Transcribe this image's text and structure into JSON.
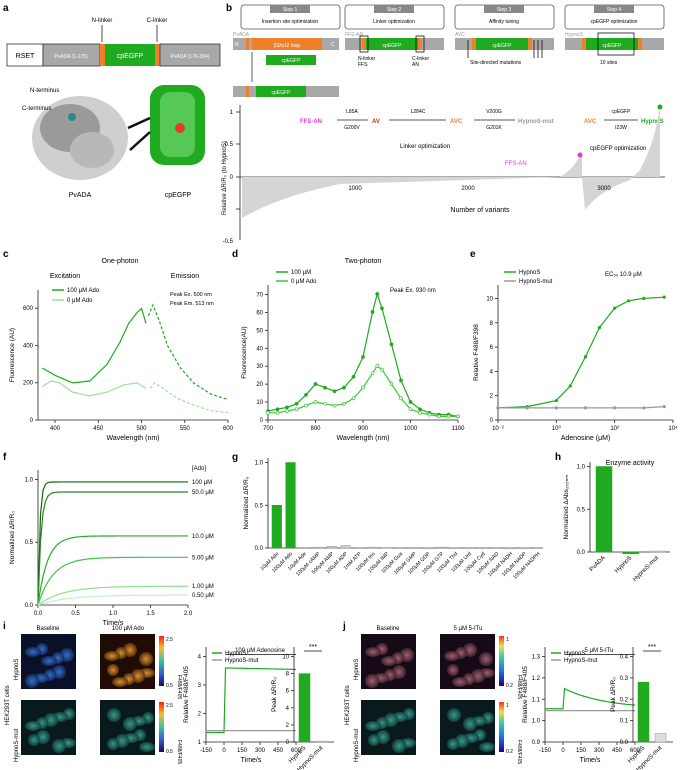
{
  "panels": {
    "a": "a",
    "b": "b",
    "c": "c",
    "d": "d",
    "e": "e",
    "f": "f",
    "g": "g",
    "h": "h",
    "i": "i",
    "j": "j"
  },
  "a": {
    "construct": [
      "RSET",
      "PvADA (1-175)",
      "cpEGFP",
      "PvADA (176-364)"
    ],
    "n_linker": "N-linker",
    "c_linker": "C-linker",
    "n_term": "N-terminus",
    "c_term": "C-terminus",
    "pvada": "PvADA",
    "cpegfp": "cpEGFP"
  },
  "b": {
    "steps": [
      {
        "num": "Step 1",
        "title": "Insertion site optimization"
      },
      {
        "num": "Step 2",
        "title": "Linker optimization"
      },
      {
        "num": "Step 3",
        "title": "Affinity tuning"
      },
      {
        "num": "Step 4",
        "title": "cpEGFP optimization"
      }
    ],
    "construct_names": [
      "PvADA",
      "FFS-AN",
      "AVC",
      "HypnoS"
    ],
    "loop": "β3/α12 loop",
    "cpegfp": "cpEGFP",
    "nlinker": "N-linker\nFFS",
    "clinker": "C-linker\nAN",
    "sdm": "Site-directed mutations",
    "ten": "10 sites",
    "N": "N",
    "C": "C",
    "path": [
      "FFS-AN",
      "AV",
      "AVC",
      "HypnoS-mut",
      "AVC",
      "HypnoS"
    ],
    "mutations": [
      "L85A\nG200V",
      "L284C",
      "V200G\nG201K",
      "cpEGFP\nI23W"
    ],
    "lbl_linker": "Linker optimization",
    "lbl_cpegfp": "cpEGFP optimization",
    "lbl_ffsan": "FFS-AN",
    "ylabel": "Relative ΔR/R₀ (to HypnoS)",
    "xlabel": "Number of variants",
    "xticks": [
      "1000",
      "2000",
      "3000"
    ],
    "yticks": [
      "0",
      "0.5",
      "1"
    ],
    "yticks_neg": [
      "-0.5"
    ]
  },
  "chart_data": [
    {
      "panel": "c",
      "type": "line",
      "title": "One-photon",
      "xlabel": "Wavelength (nm)",
      "ylabel": "Fluorescence (AU)",
      "xticks": [
        "400",
        "450",
        "500",
        "550",
        "600"
      ],
      "yticks": [
        "0",
        "200",
        "400",
        "600"
      ],
      "xlim": [
        380,
        600
      ],
      "ylim": [
        0,
        700
      ],
      "annotations": [
        "Excitation",
        "Emission",
        "Peak Ex. 500 nm",
        "Peak Em. 513 nm"
      ],
      "legend": [
        "100 μM Ado",
        "0    μM Ado"
      ],
      "series": [
        {
          "name": "100 μM Ado",
          "excitation_x": [
            385,
            400,
            420,
            440,
            460,
            475,
            485,
            495,
            500,
            505
          ],
          "excitation_y": [
            280,
            240,
            200,
            210,
            300,
            420,
            520,
            580,
            600,
            520
          ],
          "emission_x": [
            508,
            513,
            520,
            530,
            545,
            560,
            580,
            600
          ],
          "emission_y": [
            560,
            620,
            540,
            400,
            280,
            200,
            140,
            110
          ]
        },
        {
          "name": "0    μM Ado",
          "excitation_x": [
            385,
            395,
            405,
            420,
            440,
            460,
            480,
            495,
            505
          ],
          "excitation_y": [
            180,
            210,
            200,
            150,
            130,
            150,
            190,
            200,
            170
          ],
          "emission_x": [
            510,
            515,
            525,
            540,
            560,
            580,
            600
          ],
          "emission_y": [
            170,
            200,
            170,
            120,
            80,
            50,
            40
          ]
        }
      ]
    },
    {
      "panel": "d",
      "type": "line",
      "title": "Two-photon",
      "xlabel": "Wavelength (nm)",
      "ylabel": "Fluorescence(AU)",
      "xticks": [
        "700",
        "800",
        "900",
        "1000",
        "1100"
      ],
      "yticks": [
        "0",
        "10",
        "20",
        "30",
        "40",
        "50",
        "60",
        "70"
      ],
      "xlim": [
        700,
        1100
      ],
      "ylim": [
        0,
        75
      ],
      "annotation": "Peak Ex. 930 nm",
      "legend": [
        "100 μM",
        "0    μM Ado"
      ],
      "series": [
        {
          "name": "100 μM",
          "x": [
            700,
            720,
            740,
            760,
            780,
            800,
            820,
            840,
            860,
            880,
            900,
            920,
            930,
            940,
            960,
            980,
            1000,
            1020,
            1040,
            1060,
            1080,
            1100
          ],
          "y": [
            5,
            6,
            7,
            9,
            14,
            20,
            18,
            16,
            18,
            24,
            35,
            60,
            70,
            62,
            42,
            22,
            10,
            6,
            4,
            3,
            3,
            2
          ]
        },
        {
          "name": "0    μM Ado",
          "x": [
            700,
            720,
            740,
            760,
            780,
            800,
            820,
            840,
            860,
            880,
            900,
            920,
            930,
            940,
            960,
            980,
            1000,
            1020,
            1040,
            1060,
            1080,
            1100
          ],
          "y": [
            4,
            4,
            5,
            6,
            8,
            10,
            9,
            8,
            9,
            12,
            18,
            26,
            30,
            28,
            20,
            12,
            6,
            4,
            3,
            2,
            2,
            2
          ]
        }
      ]
    },
    {
      "panel": "e",
      "type": "line",
      "xlabel": "Adenosine (μM)",
      "ylabel": "Relative F488/F398",
      "xticks": [
        "10⁻²",
        "10⁰",
        "10²",
        "10⁴"
      ],
      "yticks": [
        "0",
        "2",
        "4",
        "6",
        "8",
        "10"
      ],
      "annotation": "EC₅₀ 10.9 μM",
      "legend": [
        "HypnoS",
        "HypnoS-mut"
      ],
      "series": [
        {
          "name": "HypnoS",
          "x": [
            0.01,
            0.1,
            1,
            3,
            10,
            30,
            100,
            300,
            1000,
            5000
          ],
          "y": [
            1.0,
            1.1,
            1.6,
            2.8,
            5.2,
            7.6,
            9.2,
            9.8,
            10.0,
            10.1
          ]
        },
        {
          "name": "HypnoS-mut",
          "x": [
            0.01,
            0.1,
            1,
            10,
            100,
            1000,
            5000
          ],
          "y": [
            1.0,
            1.0,
            1.0,
            1.0,
            1.0,
            1.0,
            1.1
          ]
        }
      ]
    },
    {
      "panel": "f",
      "type": "line",
      "xlabel": "Time/s",
      "ylabel": "Normalized ΔR/R₀",
      "xticks": [
        "0.0",
        "0.5",
        "1.0",
        "1.5",
        "2.0"
      ],
      "yticks": [
        "0.0",
        "0.5",
        "1.0"
      ],
      "legend_title": "[Ado]",
      "series": [
        {
          "name": "100  μM",
          "plateau": 0.98
        },
        {
          "name": "50.0  μM",
          "plateau": 0.9
        },
        {
          "name": "10.0  μM",
          "plateau": 0.55
        },
        {
          "name": "5.00  μM",
          "plateau": 0.38
        },
        {
          "name": "1.00  μM",
          "plateau": 0.15
        },
        {
          "name": "0.50  μM",
          "plateau": 0.08
        }
      ]
    },
    {
      "panel": "g",
      "type": "bar",
      "ylabel": "Normalized ΔR/R₀",
      "yticks": [
        "0.0",
        "0.5",
        "1.0"
      ],
      "ylim": [
        0,
        1.05
      ],
      "categories": [
        "10μM Ado",
        "100μM Ado",
        "10μM Ade",
        "100μM cAMP",
        "500μM AMP",
        "100μM ADP",
        "1mM ATP",
        "100μM Ino",
        "100μM IMP",
        "100μM Gua",
        "100μM GMP",
        "100μM GDP",
        "100μM GTP",
        "100μM Thd",
        "100μM Urd",
        "100μM Cyd",
        "100μM NAD",
        "100μM NADH",
        "100μM NADP",
        "100μM NADPH"
      ],
      "values": [
        0.5,
        1.0,
        0.0,
        0.01,
        0.02,
        0.03,
        0.0,
        0.01,
        0.005,
        0.0,
        0.0,
        0.0,
        0.01,
        0.0,
        0.0,
        0.0,
        0.0,
        -0.01,
        0.0,
        0.0
      ]
    },
    {
      "panel": "h",
      "type": "bar",
      "title": "Enzyme activity",
      "ylabel": "Normalized ΔAbs₂₆₅ₙₘ",
      "yticks": [
        "0.0",
        "0.5",
        "1.0"
      ],
      "categories": [
        "PvADA",
        "HypnoS",
        "HypnoS-mut"
      ],
      "values": [
        1.0,
        -0.02,
        0.0
      ]
    },
    {
      "panel": "i",
      "type": "line",
      "xlabel": "Time/s",
      "ylabel": "Relative F488/F405",
      "xticks": [
        "-150",
        "0",
        "150",
        "300",
        "450",
        "600"
      ],
      "yticks": [
        "1",
        "2",
        "3",
        "4"
      ],
      "annotation": "100 μM Adenosine",
      "legend": [
        "HypnoS",
        "HypnoS-mut"
      ],
      "bar": {
        "ylabel": "Peak ΔR/R₀",
        "yticks": [
          "0",
          "2",
          "4",
          "6",
          "8",
          "10"
        ],
        "categories": [
          "HypnoS",
          "HypnoS-mut"
        ],
        "values": [
          8.0,
          0.1
        ],
        "sig": "***"
      }
    },
    {
      "panel": "j",
      "type": "line",
      "xlabel": "Time/s",
      "ylabel": "Relative F488/F405",
      "xticks": [
        "-150",
        "0",
        "150",
        "300",
        "450",
        "600"
      ],
      "yticks": [
        "0.9",
        "1.0",
        "1.1",
        "1.2",
        "1.3"
      ],
      "annotation": "5 μM 5-ITu",
      "legend": [
        "HypnoS",
        "HypnoS-mut"
      ],
      "bar": {
        "ylabel": "Peak ΔR/R₀",
        "yticks": [
          "0.0",
          "0.1",
          "0.2",
          "0.3",
          "0.4"
        ],
        "categories": [
          "HypnoS",
          "HypnoS-mut"
        ],
        "values": [
          0.28,
          0.04
        ],
        "sig": "***"
      }
    }
  ],
  "i": {
    "baseline": "Baseline",
    "treat": "100 μM Ado",
    "cells": "HEK293T cells",
    "row1": "HypnoS",
    "row2": "HypnoS-mut",
    "cb": "F488/F405",
    "cb_top": "2.5",
    "cb_bot": "0.5"
  },
  "j": {
    "baseline": "Baseline",
    "treat": "5 μM 5-ITu",
    "cells": "HEK293T cells",
    "row1": "HypnoS",
    "row2": "HypnoS-mut",
    "cb": "F488/F405",
    "cb_top": "1",
    "cb_bot": "0.2"
  },
  "colors": {
    "green": "#1faa1f",
    "light": "#9ee09e",
    "orange": "#f07f2a",
    "gray": "#9a9a9a",
    "magenta": "#e23bd5",
    "red": "#e21b1b"
  }
}
